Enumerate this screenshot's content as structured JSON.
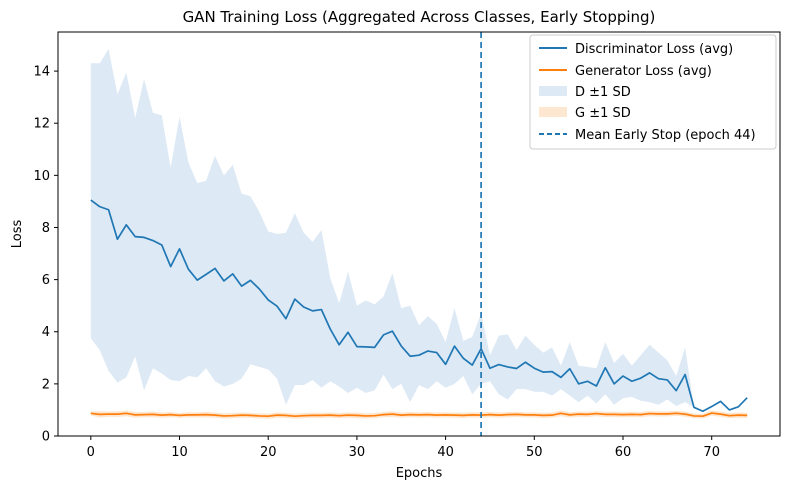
{
  "colors": {
    "discriminator": "#1f77b4",
    "generator": "#ff7f0e",
    "discriminator_band": "#c6dbef",
    "generator_band": "#fdd0a2"
  },
  "chart_data": {
    "type": "line",
    "title": "GAN Training Loss (Aggregated Across Classes, Early Stopping)",
    "xlabel": "Epochs",
    "ylabel": "Loss",
    "xlim": [
      -3.7,
      77.7
    ],
    "ylim": [
      0,
      15.5
    ],
    "xticks": [
      0,
      10,
      20,
      30,
      40,
      50,
      60,
      70
    ],
    "yticks": [
      0,
      2,
      4,
      6,
      8,
      10,
      12,
      14
    ],
    "grid": false,
    "legend_position": "top-right",
    "early_stop": {
      "x": 44,
      "label": "Mean Early Stop (epoch 44)"
    },
    "series": [
      {
        "name": "Discriminator Loss (avg)",
        "band_name": "D ±1 SD",
        "x": [
          0,
          1,
          2,
          3,
          4,
          5,
          6,
          7,
          8,
          9,
          10,
          11,
          12,
          13,
          14,
          15,
          16,
          17,
          18,
          19,
          20,
          21,
          22,
          23,
          24,
          25,
          26,
          27,
          28,
          29,
          30,
          31,
          32,
          33,
          34,
          35,
          36,
          37,
          38,
          39,
          40,
          41,
          42,
          43,
          44,
          45,
          46,
          47,
          48,
          49,
          50,
          51,
          52,
          53,
          54,
          55,
          56,
          57,
          58,
          59,
          60,
          61,
          62,
          63,
          64,
          65,
          66,
          67,
          68,
          69,
          70,
          71,
          72,
          73,
          74
        ],
        "values": [
          9.05,
          8.8,
          8.68,
          7.55,
          8.1,
          7.65,
          7.62,
          7.5,
          7.33,
          6.5,
          7.18,
          6.4,
          5.98,
          6.2,
          6.43,
          5.95,
          6.22,
          5.75,
          5.97,
          5.64,
          5.22,
          4.98,
          4.5,
          5.25,
          4.95,
          4.8,
          4.85,
          4.1,
          3.5,
          3.98,
          3.43,
          3.42,
          3.4,
          3.88,
          4.02,
          3.45,
          3.06,
          3.1,
          3.26,
          3.2,
          2.75,
          3.45,
          2.98,
          2.72,
          3.35,
          2.6,
          2.74,
          2.65,
          2.59,
          2.83,
          2.6,
          2.45,
          2.47,
          2.25,
          2.58,
          2.0,
          2.1,
          1.92,
          2.62,
          2.0,
          2.3,
          2.1,
          2.22,
          2.42,
          2.2,
          2.15,
          1.74,
          2.36,
          1.1,
          0.95,
          1.13,
          1.33,
          1.0,
          1.12,
          1.47
        ],
        "upper": [
          14.3,
          14.3,
          14.85,
          13.1,
          13.95,
          12.2,
          13.7,
          12.4,
          12.3,
          10.3,
          12.25,
          10.5,
          9.7,
          9.8,
          10.75,
          10.0,
          10.4,
          9.3,
          9.2,
          8.6,
          7.85,
          7.75,
          7.8,
          8.55,
          7.8,
          7.45,
          7.9,
          6.05,
          5.1,
          6.3,
          5.0,
          5.2,
          5.05,
          5.35,
          6.25,
          4.9,
          5.0,
          4.25,
          4.6,
          4.3,
          3.6,
          4.9,
          3.65,
          3.8,
          4.7,
          3.1,
          3.85,
          3.9,
          3.3,
          3.85,
          3.5,
          3.2,
          3.4,
          2.7,
          3.6,
          2.7,
          2.65,
          2.6,
          3.6,
          2.8,
          3.15,
          2.7,
          3.1,
          3.5,
          3.2,
          2.9,
          2.3,
          3.4,
          1.1,
          0.95,
          1.13,
          1.33,
          1.0,
          1.12,
          1.47
        ],
        "lower": [
          3.75,
          3.3,
          2.5,
          2.05,
          2.25,
          3.05,
          1.75,
          2.6,
          2.4,
          2.15,
          2.1,
          2.3,
          2.25,
          2.6,
          2.1,
          1.9,
          2.0,
          2.2,
          2.75,
          2.65,
          2.55,
          2.2,
          1.2,
          1.95,
          1.95,
          2.15,
          1.85,
          2.1,
          1.9,
          1.65,
          1.85,
          1.65,
          1.75,
          2.35,
          1.8,
          2.0,
          1.3,
          1.95,
          1.8,
          2.1,
          1.85,
          2.0,
          2.3,
          1.6,
          2.0,
          2.1,
          1.6,
          1.4,
          1.8,
          1.8,
          1.7,
          1.7,
          1.55,
          1.8,
          1.55,
          1.3,
          1.55,
          1.25,
          1.6,
          1.2,
          1.45,
          1.5,
          1.35,
          1.3,
          1.2,
          1.4,
          1.15,
          1.3,
          1.1,
          0.95,
          1.13,
          1.33,
          1.0,
          1.12,
          1.47
        ]
      },
      {
        "name": "Generator Loss (avg)",
        "band_name": "G ±1 SD",
        "x": [
          0,
          1,
          2,
          3,
          4,
          5,
          6,
          7,
          8,
          9,
          10,
          11,
          12,
          13,
          14,
          15,
          16,
          17,
          18,
          19,
          20,
          21,
          22,
          23,
          24,
          25,
          26,
          27,
          28,
          29,
          30,
          31,
          32,
          33,
          34,
          35,
          36,
          37,
          38,
          39,
          40,
          41,
          42,
          43,
          44,
          45,
          46,
          47,
          48,
          49,
          50,
          51,
          52,
          53,
          54,
          55,
          56,
          57,
          58,
          59,
          60,
          61,
          62,
          63,
          64,
          65,
          66,
          67,
          68,
          69,
          70,
          71,
          72,
          73,
          74
        ],
        "values": [
          0.87,
          0.83,
          0.84,
          0.84,
          0.87,
          0.81,
          0.82,
          0.83,
          0.8,
          0.82,
          0.79,
          0.81,
          0.81,
          0.82,
          0.8,
          0.77,
          0.78,
          0.8,
          0.79,
          0.77,
          0.76,
          0.8,
          0.79,
          0.76,
          0.78,
          0.79,
          0.79,
          0.8,
          0.78,
          0.8,
          0.79,
          0.77,
          0.78,
          0.82,
          0.84,
          0.8,
          0.82,
          0.81,
          0.82,
          0.8,
          0.81,
          0.8,
          0.79,
          0.81,
          0.8,
          0.82,
          0.8,
          0.82,
          0.83,
          0.81,
          0.81,
          0.79,
          0.8,
          0.87,
          0.81,
          0.84,
          0.83,
          0.86,
          0.83,
          0.83,
          0.82,
          0.83,
          0.82,
          0.86,
          0.85,
          0.85,
          0.87,
          0.84,
          0.77,
          0.76,
          0.88,
          0.84,
          0.78,
          0.8,
          0.79
        ],
        "upper": [
          0.95,
          0.95,
          0.94,
          0.95,
          0.98,
          0.92,
          0.92,
          0.94,
          0.9,
          0.92,
          0.88,
          0.91,
          0.91,
          0.93,
          0.9,
          0.87,
          0.88,
          0.9,
          0.89,
          0.87,
          0.86,
          0.9,
          0.89,
          0.86,
          0.88,
          0.89,
          0.89,
          0.9,
          0.88,
          0.9,
          0.9,
          0.87,
          0.88,
          0.92,
          0.95,
          0.9,
          0.92,
          0.91,
          0.92,
          0.9,
          0.91,
          0.9,
          0.89,
          0.91,
          0.9,
          0.92,
          0.9,
          0.92,
          0.93,
          0.91,
          0.91,
          0.89,
          0.9,
          0.98,
          0.91,
          0.94,
          0.93,
          0.96,
          0.93,
          0.93,
          0.92,
          0.93,
          0.92,
          0.96,
          0.95,
          0.95,
          0.97,
          0.94,
          0.86,
          0.85,
          0.98,
          0.94,
          0.88,
          0.9,
          0.89
        ],
        "lower": [
          0.79,
          0.71,
          0.74,
          0.73,
          0.76,
          0.7,
          0.72,
          0.72,
          0.7,
          0.72,
          0.7,
          0.71,
          0.71,
          0.71,
          0.7,
          0.67,
          0.68,
          0.7,
          0.69,
          0.67,
          0.66,
          0.7,
          0.69,
          0.66,
          0.68,
          0.69,
          0.69,
          0.7,
          0.68,
          0.7,
          0.68,
          0.67,
          0.68,
          0.72,
          0.73,
          0.7,
          0.72,
          0.71,
          0.72,
          0.7,
          0.71,
          0.7,
          0.69,
          0.71,
          0.7,
          0.72,
          0.7,
          0.72,
          0.73,
          0.71,
          0.71,
          0.69,
          0.7,
          0.76,
          0.71,
          0.74,
          0.73,
          0.76,
          0.73,
          0.73,
          0.72,
          0.73,
          0.72,
          0.76,
          0.75,
          0.75,
          0.77,
          0.74,
          0.68,
          0.67,
          0.78,
          0.74,
          0.68,
          0.7,
          0.69
        ]
      }
    ]
  }
}
